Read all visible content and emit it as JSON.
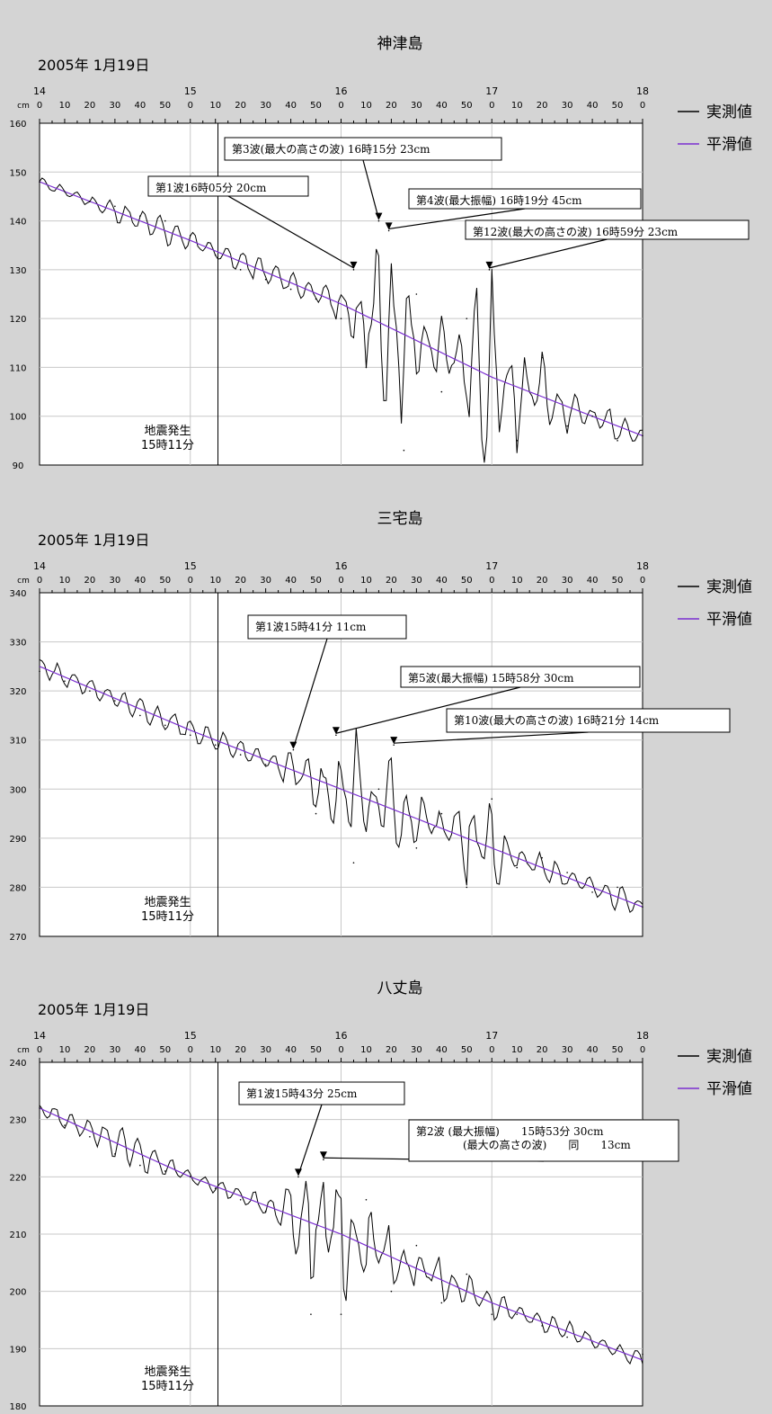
{
  "date_label": "2005年 1月19日",
  "unit_label": "cm",
  "hour_labels": [
    "14",
    "15",
    "16",
    "17",
    "18"
  ],
  "minute_labels": [
    "0",
    "10",
    "20",
    "30",
    "40",
    "50"
  ],
  "legend": {
    "measured": "実測値",
    "smoothed": "平滑値"
  },
  "colors": {
    "measured": "#000000",
    "smoothed": "#7b2fd0",
    "background": "#d4d4d4",
    "plot": "#ffffff",
    "grid": "#c8c8c8"
  },
  "quake_label": {
    "line1": "地震発生",
    "line2": "15時11分"
  },
  "chart_data": [
    {
      "type": "line",
      "title": "神津島",
      "xlabel": "",
      "ylabel": "cm",
      "xlim": [
        "14:00",
        "18:00"
      ],
      "ylim": [
        90,
        160
      ],
      "yticks": [
        "160",
        "150",
        "140",
        "130",
        "120",
        "110",
        "100",
        "90"
      ],
      "grid": true,
      "legend_position": "right",
      "quake_time": "15:11",
      "series": [
        {
          "name": "実測値",
          "kind": "observed",
          "x": [
            "14:00",
            "14:10",
            "14:20",
            "14:30",
            "14:40",
            "14:50",
            "15:00",
            "15:10",
            "15:20",
            "15:30",
            "15:40",
            "15:50",
            "16:00",
            "16:05",
            "16:10",
            "16:15",
            "16:19",
            "16:25",
            "16:30",
            "16:40",
            "16:50",
            "16:59",
            "17:10",
            "17:20",
            "17:30",
            "17:40",
            "17:50",
            "18:00"
          ],
          "y": [
            148,
            146,
            144,
            143,
            141,
            140,
            137,
            133,
            130,
            128,
            126,
            124,
            120,
            130,
            110,
            140,
            138,
            93,
            125,
            105,
            120,
            130,
            95,
            112,
            98,
            100,
            95,
            96
          ]
        },
        {
          "name": "平滑値",
          "kind": "smoothed",
          "x": [
            "14:00",
            "15:00",
            "16:00",
            "17:00",
            "18:00"
          ],
          "y": [
            148,
            136,
            123,
            108,
            96
          ]
        }
      ],
      "annotations": [
        {
          "text": "第3波(最大の高さの波) 16時15分 23cm",
          "time": "16:15",
          "value": 140
        },
        {
          "text": "第1波16時05分 20cm",
          "time": "16:05",
          "value": 130
        },
        {
          "text": "第4波(最大振幅) 16時19分 45cm",
          "time": "16:19",
          "value": 138
        },
        {
          "text": "第12波(最大の高さの波) 16時59分 23cm",
          "time": "16:59",
          "value": 130
        }
      ]
    },
    {
      "type": "line",
      "title": "三宅島",
      "xlabel": "",
      "ylabel": "cm",
      "xlim": [
        "14:00",
        "18:00"
      ],
      "ylim": [
        270,
        340
      ],
      "yticks": [
        "340",
        "330",
        "320",
        "310",
        "300",
        "290",
        "280",
        "270"
      ],
      "grid": true,
      "legend_position": "right",
      "quake_time": "15:11",
      "series": [
        {
          "name": "実測値",
          "kind": "observed",
          "x": [
            "14:00",
            "14:10",
            "14:20",
            "14:30",
            "14:40",
            "14:50",
            "15:00",
            "15:10",
            "15:20",
            "15:30",
            "15:41",
            "15:50",
            "15:58",
            "16:05",
            "16:15",
            "16:21",
            "16:30",
            "16:40",
            "16:50",
            "17:00",
            "17:10",
            "17:20",
            "17:30",
            "17:40",
            "17:50",
            "18:00"
          ],
          "y": [
            324,
            322,
            320,
            318,
            315,
            313,
            311,
            309,
            307,
            305,
            308,
            295,
            311,
            285,
            300,
            309,
            288,
            295,
            280,
            298,
            284,
            286,
            283,
            279,
            280,
            276
          ]
        },
        {
          "name": "平滑値",
          "kind": "smoothed",
          "x": [
            "14:00",
            "15:00",
            "16:00",
            "17:00",
            "18:00"
          ],
          "y": [
            325,
            312,
            300,
            288,
            276
          ]
        }
      ],
      "annotations": [
        {
          "text": "第1波15時41分 11cm",
          "time": "15:41",
          "value": 308
        },
        {
          "text": "第5波(最大振幅) 15時58分 30cm",
          "time": "15:58",
          "value": 311
        },
        {
          "text": "第10波(最大の高さの波) 16時21分 14cm",
          "time": "16:21",
          "value": 309
        }
      ]
    },
    {
      "type": "line",
      "title": "八丈島",
      "xlabel": "",
      "ylabel": "cm",
      "xlim": [
        "14:00",
        "18:00"
      ],
      "ylim": [
        180,
        240
      ],
      "yticks": [
        "240",
        "230",
        "220",
        "210",
        "200",
        "190",
        "180"
      ],
      "grid": true,
      "legend_position": "right",
      "quake_time": "15:11",
      "series": [
        {
          "name": "実測値",
          "kind": "observed",
          "x": [
            "14:00",
            "14:10",
            "14:20",
            "14:30",
            "14:40",
            "14:50",
            "15:00",
            "15:10",
            "15:20",
            "15:30",
            "15:43",
            "15:48",
            "15:53",
            "16:00",
            "16:10",
            "16:20",
            "16:30",
            "16:40",
            "16:50",
            "17:00",
            "17:10",
            "17:20",
            "17:30",
            "17:40",
            "17:50",
            "18:00"
          ],
          "y": [
            232,
            229,
            227,
            224,
            222,
            221,
            220,
            218,
            216,
            214,
            220,
            196,
            223,
            196,
            216,
            200,
            208,
            198,
            203,
            196,
            196,
            194,
            192,
            191,
            190,
            189
          ]
        },
        {
          "name": "平滑値",
          "kind": "smoothed",
          "x": [
            "14:00",
            "15:00",
            "16:00",
            "17:00",
            "18:00"
          ],
          "y": [
            232,
            220,
            210,
            198,
            188
          ]
        }
      ],
      "annotations": [
        {
          "text": "第1波15時43分 25cm",
          "time": "15:43",
          "value": 220
        },
        {
          "text": "第2波 (最大振幅)　　15時53分 30cm",
          "text2": "(最大の高さの波)　　同　　13cm",
          "time": "15:53",
          "value": 223
        }
      ]
    }
  ]
}
